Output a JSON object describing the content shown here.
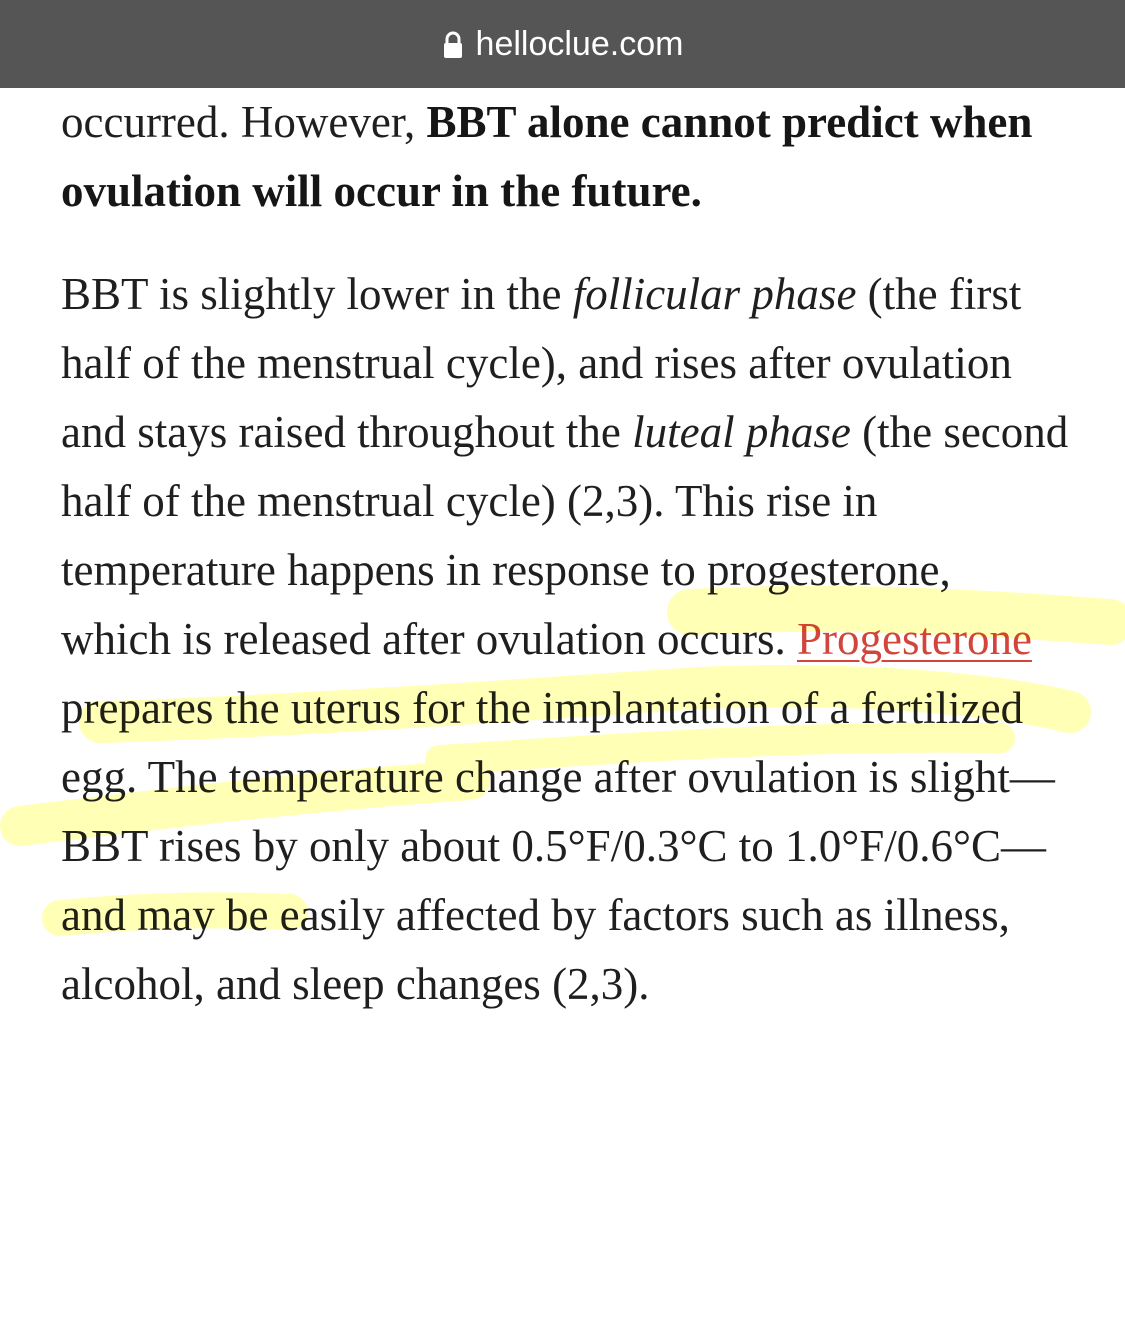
{
  "browser": {
    "url": "helloclue.com",
    "lock_icon": "lock-icon"
  },
  "highlight_color": "#ffff66",
  "link_color": "#d2453a",
  "article": {
    "para1": {
      "t1": "occurred. However, ",
      "bold": "BBT alone cannot predict when ovulation will occur in the future."
    },
    "para2": {
      "t1": "BBT is slightly lower in the ",
      "em1": "follicular phase",
      "t2": " (the first half of the menstrual cycle), and rises after ovulation and stays raised throughout the ",
      "em2": "luteal phase",
      "t3": " (the second half of the menstrual cycle) (2,3). This rise in temperature happens in response to progesterone, which is released after ovulation occurs. ",
      "link": "Progesterone",
      "t4": " prepares the uterus for the implantation of a fertilized egg. The temperature change after ovulation is slight—BBT rises by only about 0.5°F/0.3°C to 1.0°F/0.6°C—and may be easily affected by factors such as illness, alcohol, and sleep changes (2,3)."
    }
  }
}
